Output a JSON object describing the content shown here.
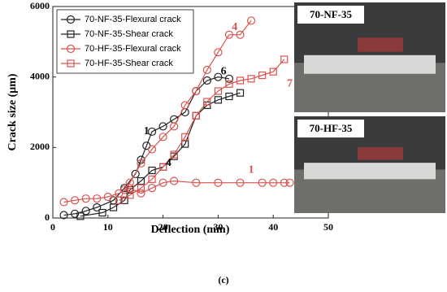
{
  "chart_data": {
    "type": "line",
    "xlabel": "Deflection (mm)",
    "ylabel": "Crack size (μm)",
    "caption": "(c)",
    "xlim": [
      0,
      50
    ],
    "xticks": [
      0,
      10,
      20,
      30,
      40,
      50
    ],
    "ylim": [
      0,
      6000
    ],
    "yticks": [
      0,
      2000,
      4000,
      6000
    ],
    "legend": "upper left",
    "series": [
      {
        "name": "70-NF-35-Flexural crack",
        "color": "#222222",
        "marker": "circle",
        "x": [
          2,
          4,
          6,
          8,
          11,
          13,
          15,
          16,
          17,
          18,
          20,
          22,
          24,
          26,
          28,
          30,
          32
        ],
        "values": [
          80,
          120,
          200,
          300,
          500,
          850,
          1250,
          1650,
          2050,
          2450,
          2600,
          2800,
          3000,
          3600,
          3900,
          4000,
          3950
        ]
      },
      {
        "name": "70-NF-35-Shear crack",
        "color": "#222222",
        "marker": "square",
        "x": [
          5,
          9,
          11,
          13,
          14,
          16,
          18,
          20,
          22,
          24,
          26,
          28,
          30,
          32,
          34
        ],
        "values": [
          50,
          150,
          300,
          500,
          800,
          1050,
          1350,
          1450,
          1750,
          2100,
          2900,
          3200,
          3350,
          3450,
          3550
        ]
      },
      {
        "name": "70-HF-35-Flexural crack",
        "color": "#d9534f",
        "marker": "circle",
        "x": [
          2,
          4,
          6,
          8,
          10,
          12,
          14,
          16,
          18,
          20,
          22,
          26,
          30,
          34,
          38,
          40,
          42,
          43,
          null,
          13,
          14,
          16,
          18,
          20,
          22,
          24,
          26,
          28,
          30,
          32,
          34,
          36
        ],
        "values": [
          450,
          500,
          550,
          550,
          600,
          700,
          850,
          700,
          850,
          1000,
          1050,
          1000,
          1000,
          1000,
          1000,
          1000,
          1000,
          1000,
          null,
          800,
          1000,
          1550,
          1950,
          2300,
          2600,
          3200,
          3600,
          4200,
          4700,
          5200,
          5200,
          5600
        ]
      },
      {
        "name": "70-HF-35-Shear crack",
        "color": "#d9534f",
        "marker": "square",
        "x": [
          12,
          14,
          16,
          18,
          20,
          22,
          24,
          26,
          28,
          30,
          32,
          34,
          36,
          38,
          40,
          42
        ],
        "values": [
          500,
          650,
          850,
          1100,
          1450,
          1800,
          2300,
          2900,
          3300,
          3600,
          3800,
          3900,
          3950,
          4050,
          4150,
          4500
        ]
      }
    ],
    "annotations": [
      {
        "text": "1",
        "x": 17,
        "y": 2450,
        "color": "#111111"
      },
      {
        "text": "6",
        "x": 31,
        "y": 4150,
        "color": "#111111"
      },
      {
        "text": "4",
        "x": 21,
        "y": 1550,
        "color": "#111111"
      },
      {
        "text": "4",
        "x": 33,
        "y": 5400,
        "color": "#d9534f"
      },
      {
        "text": "7",
        "x": 43,
        "y": 3800,
        "color": "#d9534f"
      },
      {
        "text": "1",
        "x": 36,
        "y": 1350,
        "color": "#d9534f"
      }
    ],
    "photos": [
      "70-NF-35",
      "70-HF-35"
    ]
  }
}
